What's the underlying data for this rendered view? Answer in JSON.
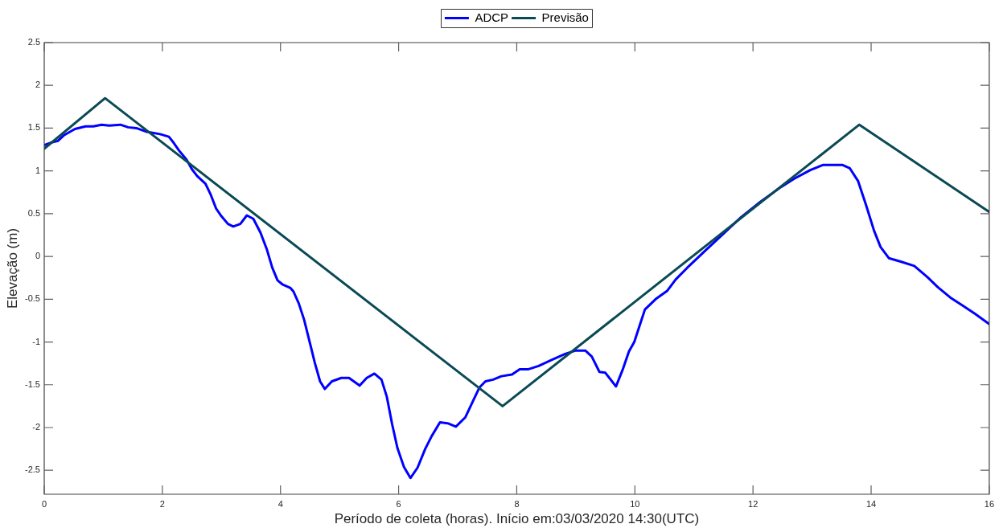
{
  "chart_data": {
    "type": "line",
    "xlabel": "Período de coleta (horas). Início em:03/03/2020 14:30(UTC)",
    "ylabel": "Elevação (m)",
    "xlim": [
      0,
      16
    ],
    "xticks": [
      0,
      2,
      4,
      6,
      8,
      10,
      12,
      14,
      16
    ],
    "ylim": [
      -2.78,
      2.5
    ],
    "yticks": [
      -2.5,
      -2,
      -1.5,
      -1,
      -0.5,
      0,
      0.5,
      1,
      1.5,
      2,
      2.5
    ],
    "legend": "top",
    "series": [
      {
        "name": "ADCP",
        "color": "#0000ff",
        "x": [
          0,
          0.11,
          0.23,
          0.34,
          0.52,
          0.7,
          0.83,
          0.97,
          1.1,
          1.29,
          1.42,
          1.56,
          1.72,
          1.96,
          2.11,
          2.19,
          2.28,
          2.41,
          2.5,
          2.59,
          2.73,
          2.82,
          2.91,
          3,
          3.11,
          3.2,
          3.32,
          3.43,
          3.54,
          3.66,
          3.77,
          3.86,
          3.95,
          4.04,
          4.17,
          4.22,
          4.31,
          4.4,
          4.49,
          4.58,
          4.67,
          4.75,
          4.87,
          5.03,
          5.16,
          5.34,
          5.46,
          5.59,
          5.71,
          5.8,
          5.89,
          5.98,
          6.09,
          6.2,
          6.32,
          6.45,
          6.56,
          6.7,
          6.83,
          6.97,
          7.13,
          7.26,
          7.37,
          7.47,
          7.6,
          7.74,
          7.92,
          8.05,
          8.19,
          8.37,
          8.59,
          8.82,
          9,
          9.16,
          9.27,
          9.4,
          9.5,
          9.68,
          9.79,
          9.9,
          9.99,
          10.08,
          10.17,
          10.35,
          10.55,
          10.69,
          10.89,
          11.21,
          11.52,
          11.8,
          12.11,
          12.47,
          12.7,
          12.97,
          13.19,
          13.51,
          13.64,
          13.78,
          13.91,
          14.05,
          14.16,
          14.3,
          14.5,
          14.73,
          14.95,
          15.13,
          15.34,
          15.54,
          15.76,
          16
        ],
        "values": [
          1.3,
          1.33,
          1.35,
          1.42,
          1.49,
          1.52,
          1.52,
          1.54,
          1.53,
          1.54,
          1.51,
          1.5,
          1.46,
          1.43,
          1.4,
          1.33,
          1.24,
          1.13,
          1.02,
          0.94,
          0.85,
          0.72,
          0.56,
          0.47,
          0.38,
          0.35,
          0.38,
          0.48,
          0.44,
          0.28,
          0.08,
          -0.13,
          -0.28,
          -0.33,
          -0.37,
          -0.41,
          -0.55,
          -0.74,
          -0.99,
          -1.24,
          -1.46,
          -1.55,
          -1.46,
          -1.42,
          -1.42,
          -1.51,
          -1.42,
          -1.37,
          -1.44,
          -1.64,
          -1.96,
          -2.24,
          -2.46,
          -2.59,
          -2.47,
          -2.25,
          -2.1,
          -1.94,
          -1.95,
          -1.99,
          -1.88,
          -1.69,
          -1.53,
          -1.46,
          -1.44,
          -1.4,
          -1.38,
          -1.32,
          -1.32,
          -1.28,
          -1.21,
          -1.14,
          -1.1,
          -1.1,
          -1.17,
          -1.35,
          -1.36,
          -1.52,
          -1.33,
          -1.11,
          -1,
          -0.81,
          -0.62,
          -0.5,
          -0.4,
          -0.27,
          -0.13,
          0.08,
          0.28,
          0.46,
          0.63,
          0.81,
          0.91,
          1.01,
          1.07,
          1.07,
          1.03,
          0.88,
          0.61,
          0.3,
          0.11,
          -0.02,
          -0.06,
          -0.11,
          -0.24,
          -0.36,
          -0.48,
          -0.57,
          -0.67,
          -0.79
        ]
      },
      {
        "name": "Previsão",
        "color": "#0a4a55",
        "x": [
          0,
          1.03,
          7.76,
          13.8,
          16
        ],
        "values": [
          1.26,
          1.85,
          -1.75,
          1.54,
          0.52
        ]
      }
    ]
  }
}
